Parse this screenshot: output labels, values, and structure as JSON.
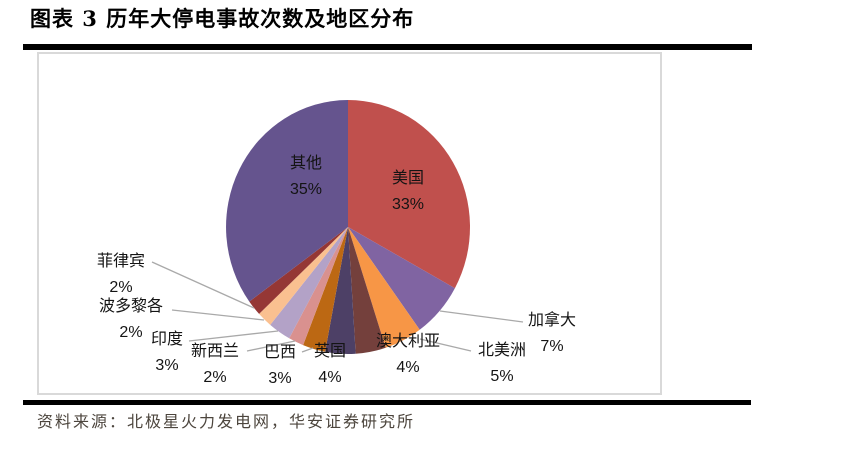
{
  "header": {
    "title": "图表 3 历年大停电事故次数及地区分布"
  },
  "footer": {
    "source": "资料来源：北极星火力发电网，华安证券研究所"
  },
  "colors": {
    "rule": "#000000",
    "chart_box_border": "#D9D9D9",
    "leader_line": "#A9A9A9",
    "label_text": "#141414"
  },
  "chart_data": {
    "type": "pie",
    "title": "历年大停电事故次数及地区分布",
    "legend": false,
    "start_angle_deg": 0,
    "direction": "clockwise",
    "total": 100,
    "label_format": "category name + percent",
    "segments": [
      {
        "label": "美国",
        "value": 33,
        "pct": "33%",
        "color": "#C0504D",
        "label_placement": "inside"
      },
      {
        "label": "加拿大",
        "value": 7,
        "pct": "7%",
        "color": "#8064A2",
        "label_placement": "outside"
      },
      {
        "label": "北美洲",
        "value": 5,
        "pct": "5%",
        "color": "#F79646",
        "label_placement": "outside"
      },
      {
        "label": "澳大利亚",
        "value": 4,
        "pct": "4%",
        "color": "#74403C",
        "label_placement": "outside"
      },
      {
        "label": "英国",
        "value": 4,
        "pct": "4%",
        "color": "#4D4066",
        "label_placement": "outside"
      },
      {
        "label": "巴西",
        "value": 3,
        "pct": "3%",
        "color": "#BC6813",
        "label_placement": "outside"
      },
      {
        "label": "新西兰",
        "value": 2,
        "pct": "2%",
        "color": "#D9918F",
        "label_placement": "outside"
      },
      {
        "label": "印度",
        "value": 3,
        "pct": "3%",
        "color": "#B3A2C7",
        "label_placement": "outside"
      },
      {
        "label": "波多黎各",
        "value": 2,
        "pct": "2%",
        "color": "#FAC090",
        "label_placement": "outside"
      },
      {
        "label": "菲律宾",
        "value": 2,
        "pct": "2%",
        "color": "#953735",
        "label_placement": "outside"
      },
      {
        "label": "其他",
        "value": 35,
        "pct": "35%",
        "color": "#65548E",
        "label_placement": "inside"
      }
    ]
  }
}
